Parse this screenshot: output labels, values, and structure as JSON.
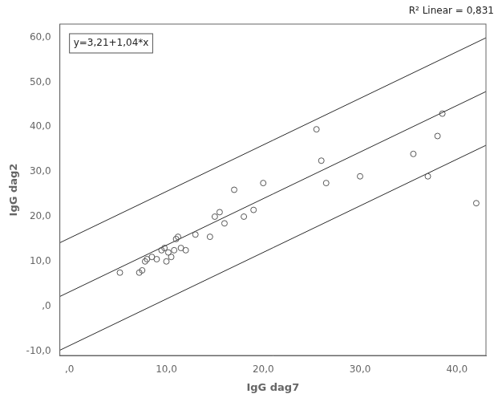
{
  "chart_data": {
    "type": "scatter",
    "x_label": "IgG dag7",
    "y_label": "IgG dag2",
    "annotations": [
      "R² Linear = 0,831",
      "y=3,21+1,04*x"
    ],
    "xlim": [
      -1,
      43
    ],
    "ylim": [
      -11,
      63
    ],
    "xticks": [
      {
        "value": 0,
        "label": ",0"
      },
      {
        "value": 10,
        "label": "10,0"
      },
      {
        "value": 20,
        "label": "20,0"
      },
      {
        "value": 30,
        "label": "30,0"
      },
      {
        "value": 40,
        "label": "40,0"
      }
    ],
    "yticks": [
      {
        "value": -10,
        "label": "-10,0"
      },
      {
        "value": 0,
        "label": ",0"
      },
      {
        "value": 10,
        "label": "10,0"
      },
      {
        "value": 20,
        "label": "20,0"
      },
      {
        "value": 30,
        "label": "30,0"
      },
      {
        "value": 40,
        "label": "40,0"
      },
      {
        "value": 50,
        "label": "50,0"
      },
      {
        "value": 60,
        "label": "60,0"
      }
    ],
    "grid": false,
    "series": [
      {
        "type": "scatter",
        "marker": "circle",
        "color": "#555555",
        "x": [
          5.2,
          7.2,
          7.5,
          7.8,
          8.0,
          8.5,
          9.0,
          9.5,
          9.8,
          10.0,
          10.2,
          10.5,
          10.8,
          11.0,
          11.2,
          11.5,
          12.0,
          13.0,
          14.5,
          15.0,
          15.5,
          16.0,
          17.0,
          18.0,
          19.0,
          20.0,
          25.5,
          26.0,
          26.5,
          30.0,
          35.5,
          37.0,
          38.0,
          38.5,
          42.0
        ],
        "values": [
          7.5,
          7.5,
          8.0,
          10.0,
          10.5,
          11.0,
          10.5,
          12.5,
          13.0,
          10.0,
          12.0,
          11.0,
          12.5,
          15.0,
          15.5,
          13.0,
          12.5,
          16.0,
          15.5,
          20.0,
          21.0,
          18.5,
          26.0,
          20.0,
          21.5,
          27.5,
          39.5,
          32.5,
          27.5,
          29.0,
          34.0,
          29.0,
          38.0,
          43.0,
          23.0
        ]
      },
      {
        "type": "line",
        "color": "#2a2a2a",
        "x": [
          -1,
          43
        ],
        "values": [
          14.17,
          59.93
        ]
      },
      {
        "type": "line",
        "color": "#2a2a2a",
        "x": [
          -1,
          43
        ],
        "values": [
          2.17,
          47.93
        ]
      },
      {
        "type": "line",
        "color": "#2a2a2a",
        "x": [
          -1,
          43
        ],
        "values": [
          -9.83,
          35.93
        ]
      }
    ]
  }
}
